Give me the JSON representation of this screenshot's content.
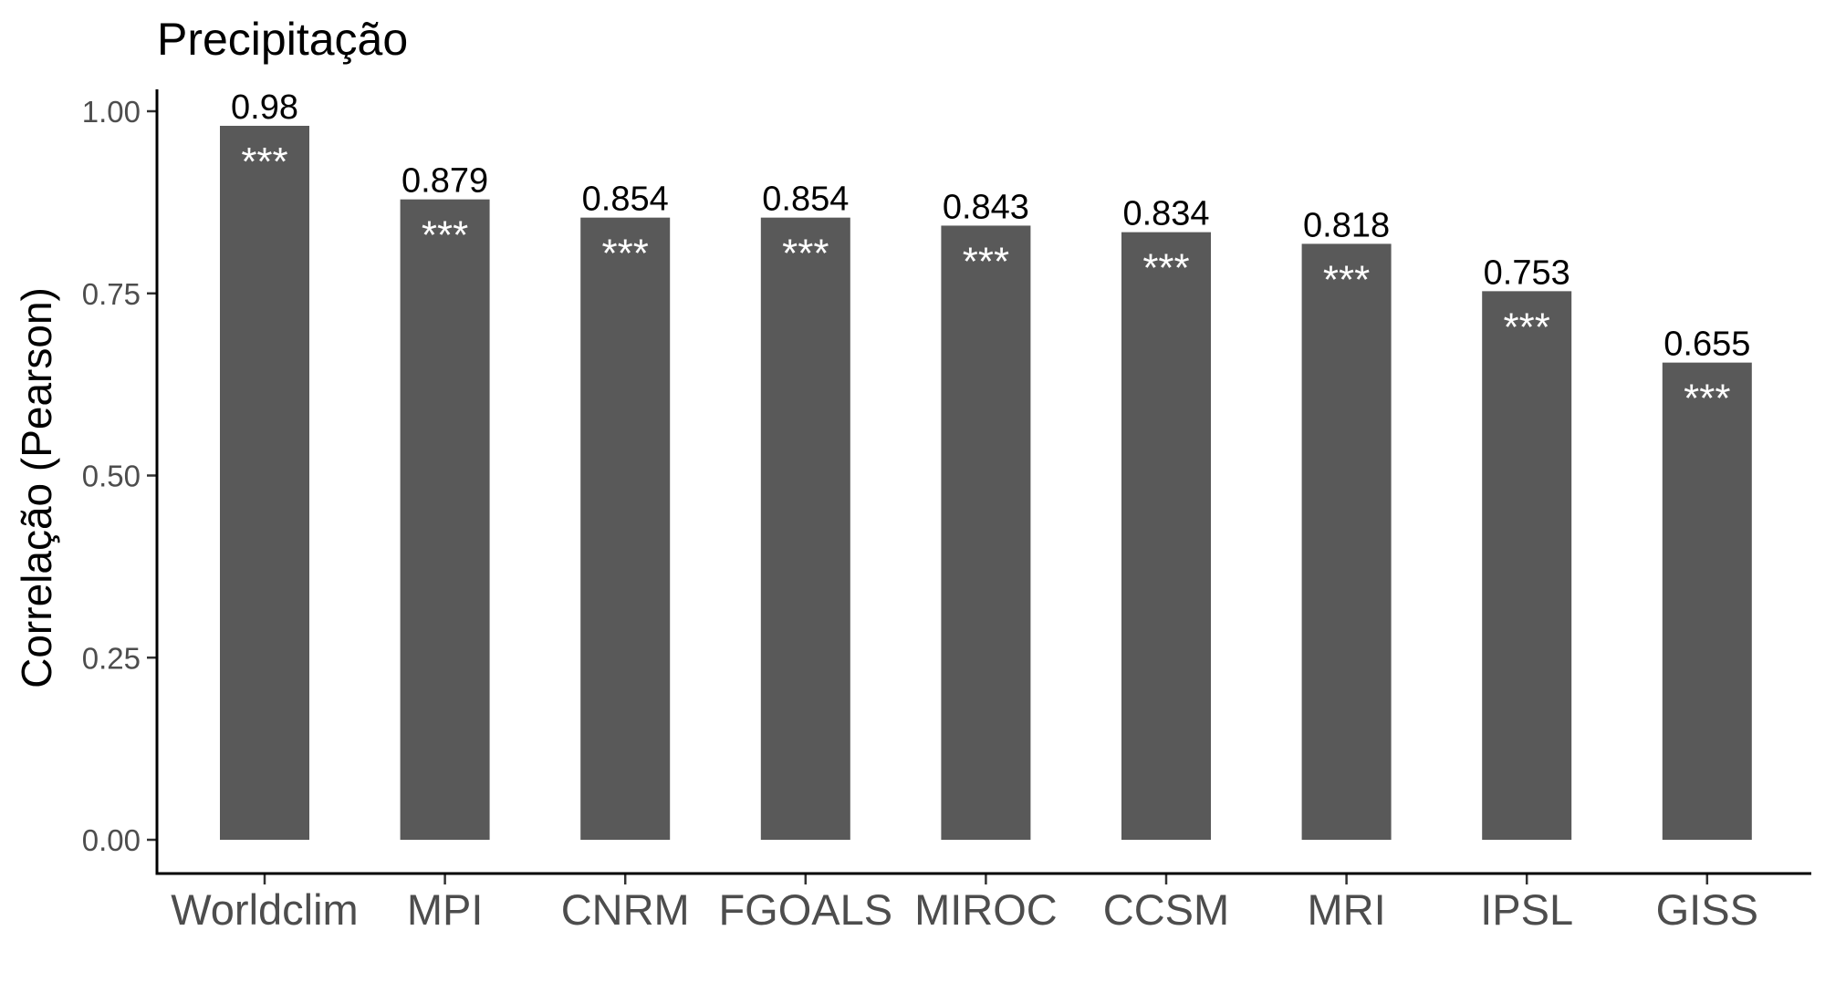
{
  "chart_data": {
    "type": "bar",
    "title": "Precipitação",
    "xlabel": "",
    "ylabel": "Correlação (Pearson)",
    "ylim": [
      0,
      1.0
    ],
    "yticks": [
      0.0,
      0.25,
      0.5,
      0.75,
      1.0
    ],
    "ytick_labels": [
      "0.00",
      "0.25",
      "0.50",
      "0.75",
      "1.00"
    ],
    "categories": [
      "Worldclim",
      "MPI",
      "CNRM",
      "FGOALS",
      "MIROC",
      "CCSM",
      "MRI",
      "IPSL",
      "GISS"
    ],
    "values": [
      0.98,
      0.879,
      0.854,
      0.854,
      0.843,
      0.834,
      0.818,
      0.753,
      0.655
    ],
    "value_labels": [
      "0.98",
      "0.879",
      "0.854",
      "0.854",
      "0.843",
      "0.834",
      "0.818",
      "0.753",
      "0.655"
    ],
    "significance": [
      "***",
      "***",
      "***",
      "***",
      "***",
      "***",
      "***",
      "***",
      "***"
    ],
    "bar_color": "#595959",
    "grid": false,
    "legend": "none"
  }
}
